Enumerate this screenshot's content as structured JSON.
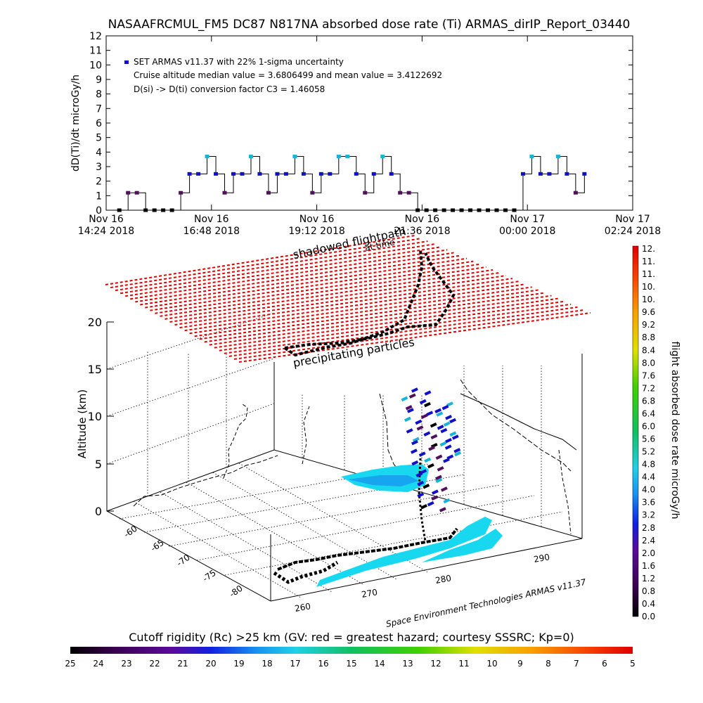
{
  "chart_data": [
    {
      "type": "line",
      "title": "NASAAFRCMUL_FM5 DC87 N817NA absorbed dose rate (Ti) ARMAS_dirIP_Report_03440",
      "ylabel": "dD(Ti)/dt microGy/h",
      "ylim": [
        0,
        12
      ],
      "yticks": [
        "0",
        "1",
        "2",
        "3",
        "4",
        "5",
        "6",
        "7",
        "8",
        "9",
        "10",
        "11",
        "12"
      ],
      "xticks": [
        {
          "line1": "Nov 16",
          "line2": "14:24 2018"
        },
        {
          "line1": "Nov 16",
          "line2": "16:48 2018"
        },
        {
          "line1": "Nov 16",
          "line2": "19:12 2018"
        },
        {
          "line1": "Nov 16",
          "line2": "21:36 2018"
        },
        {
          "line1": "Nov 17",
          "line2": "00:00 2018"
        },
        {
          "line1": "Nov 17",
          "line2": "02:24 2018"
        }
      ],
      "xlim_hours": [
        0,
        12
      ],
      "annotations": [
        "SET ARMAS v11.37 with 22% 1-sigma uncertainty",
        "Cruise altitude median value = 3.6806499 and mean value = 3.4122692",
        "D(si) -> D(ti) conversion factor C3 = 1.46058"
      ],
      "series": [
        {
          "name": "SET ARMAS v11.37 with 22% 1-sigma uncertainty",
          "x": [
            0.3,
            0.5,
            0.7,
            0.9,
            1.1,
            1.3,
            1.5,
            1.7,
            1.9,
            2.1,
            2.3,
            2.5,
            2.7,
            2.9,
            3.1,
            3.3,
            3.5,
            3.7,
            3.9,
            4.1,
            4.3,
            4.5,
            4.7,
            4.9,
            5.1,
            5.3,
            5.5,
            5.7,
            5.9,
            6.1,
            6.3,
            6.5,
            6.7,
            6.9,
            7.1,
            7.3,
            7.5,
            7.7,
            7.9,
            8.1,
            8.3,
            8.5,
            8.7,
            8.9,
            9.1,
            9.3,
            9.5,
            9.7,
            9.9,
            10.1,
            10.3,
            10.5,
            10.7,
            10.9
          ],
          "y": [
            0,
            1.2,
            1.2,
            0,
            0,
            0,
            0,
            1.2,
            2.5,
            2.5,
            3.7,
            2.5,
            1.2,
            2.5,
            2.5,
            3.7,
            2.5,
            1.2,
            2.5,
            2.5,
            3.7,
            2.5,
            1.2,
            2.5,
            2.5,
            3.7,
            3.7,
            2.5,
            1.2,
            2.5,
            3.7,
            2.5,
            1.2,
            1.2,
            0,
            0,
            0,
            0,
            0,
            0,
            0,
            0,
            0,
            0,
            0,
            0,
            2.5,
            3.7,
            2.5,
            2.5,
            3.7,
            2.5,
            1.2,
            2.5
          ]
        }
      ]
    },
    {
      "type": "scatter",
      "ylabel": "Altitude (km)",
      "zticks": [
        "0",
        "5",
        "10",
        "15",
        "20"
      ],
      "lat_ticks": [
        "-60",
        "-65",
        "-70",
        "-75",
        "-80"
      ],
      "lon_ticks": [
        "260",
        "270",
        "280",
        "290"
      ],
      "annotations": [
        "shadowed flightpath",
        "at time",
        "precipitating particles"
      ],
      "credit": "Space Environment Technologies ARMAS v11.37"
    },
    {
      "type": "heatmap",
      "colorbar_label": "flight absorbed dose rate microGy/h",
      "colorbar_ticks": [
        "0.0",
        "0.4",
        "0.8",
        "1.2",
        "1.6",
        "2.0",
        "2.4",
        "2.8",
        "3.2",
        "3.6",
        "4.0",
        "4.4",
        "4.8",
        "5.2",
        "5.6",
        "6.0",
        "6.4",
        "6.8",
        "7.2",
        "7.6",
        "8.0",
        "8.4",
        "8.8",
        "9.2",
        "9.6",
        "10.",
        "10.",
        "11.",
        "11.",
        "12."
      ]
    },
    {
      "type": "heatmap",
      "title": "Cutoff rigidity (Rc) >25 km (GV: red = greatest hazard; courtesy SSSRC; Kp=0)",
      "colorbar_ticks": [
        "25",
        "24",
        "23",
        "22",
        "21",
        "20",
        "19",
        "18",
        "17",
        "16",
        "15",
        "14",
        "13",
        "12",
        "11",
        "10",
        "9",
        "8",
        "7",
        "6",
        "5"
      ]
    }
  ],
  "colors": {
    "marker_blue": "#1010c8",
    "marker_purple": "#50105a",
    "marker_cyan": "#16b4d6",
    "marker_green": "#20c040",
    "hazard_red": "#e00000",
    "map_cyan": "#18d8f0"
  }
}
